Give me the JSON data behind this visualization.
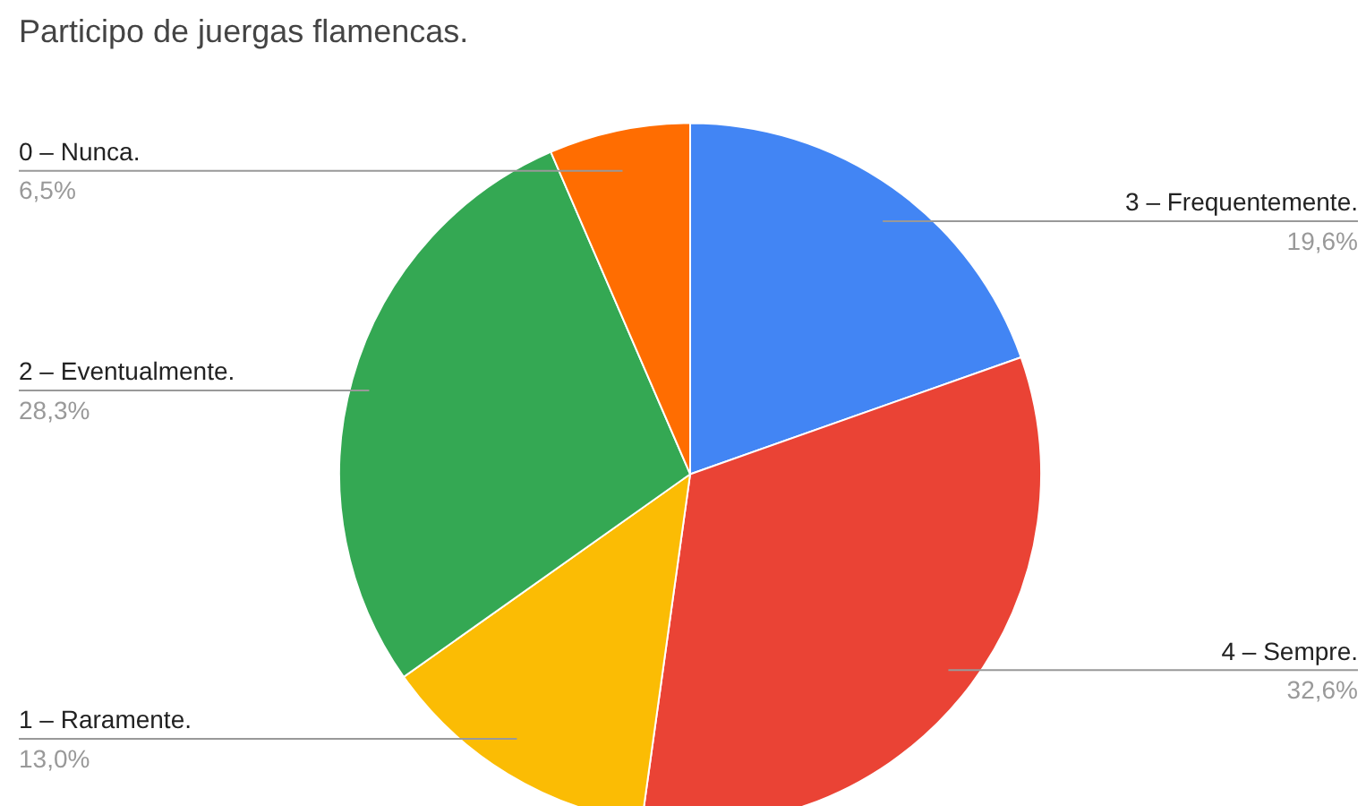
{
  "chart_data": {
    "type": "pie",
    "title": "Participo de juergas flamencas.",
    "categories": [
      "3 – Frequentemente.",
      "4 – Sempre.",
      "1 – Raramente.",
      "2 – Eventualmente.",
      "0 – Nunca."
    ],
    "values": [
      19.6,
      32.6,
      13.0,
      28.3,
      6.5
    ],
    "colors": [
      "#4285f4",
      "#ea4335",
      "#fbbc04",
      "#34a853",
      "#ff6d01"
    ],
    "value_labels": [
      "19,6%",
      "32,6%",
      "13,0%",
      "28,3%",
      "6,5%"
    ]
  }
}
